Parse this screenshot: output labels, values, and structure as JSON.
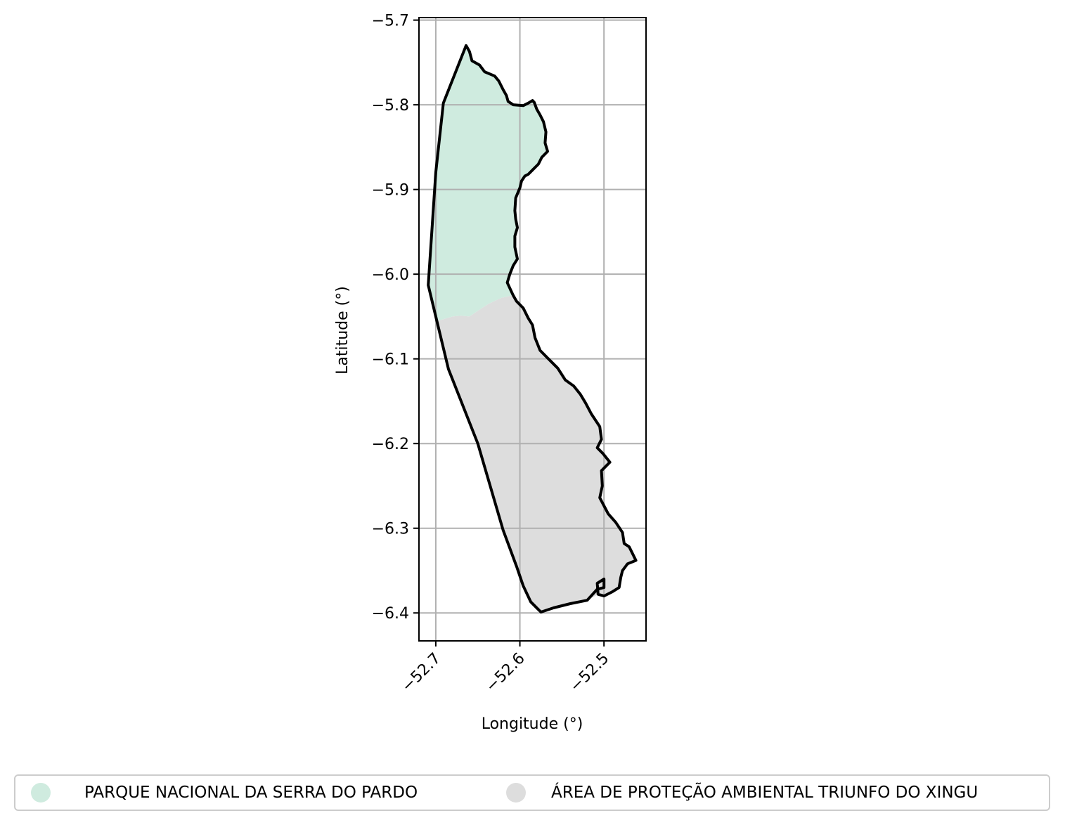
{
  "map": {
    "xlabel": "Longitude (°)",
    "ylabel": "Latitude (°)",
    "xlim": [
      -52.72,
      -52.45
    ],
    "ylim": [
      -6.433,
      -5.697
    ],
    "x_ticks": [
      -52.7,
      -52.6,
      -52.5
    ],
    "x_tick_labels": [
      "−52.7",
      "−52.6",
      "−52.5"
    ],
    "y_ticks": [
      -5.7,
      -5.8,
      -5.9,
      -6.0,
      -6.1,
      -6.2,
      -6.3,
      -6.4
    ],
    "y_tick_labels": [
      "−5.7",
      "−5.8",
      "−5.9",
      "−6.0",
      "−6.1",
      "−6.2",
      "−6.3",
      "−6.4"
    ],
    "grid": true,
    "boundary_color": "#000000",
    "regions": [
      {
        "name": "PARQUE NACIONAL DA SERRA DO PARDO",
        "color": "#cfebdf",
        "polygon": [
          [
            -52.664,
            -5.73
          ],
          [
            -52.66,
            -5.737
          ],
          [
            -52.657,
            -5.748
          ],
          [
            -52.648,
            -5.753
          ],
          [
            -52.642,
            -5.761
          ],
          [
            -52.63,
            -5.766
          ],
          [
            -52.625,
            -5.772
          ],
          [
            -52.62,
            -5.782
          ],
          [
            -52.616,
            -5.789
          ],
          [
            -52.614,
            -5.796
          ],
          [
            -52.608,
            -5.8
          ],
          [
            -52.596,
            -5.801
          ],
          [
            -52.59,
            -5.798
          ],
          [
            -52.585,
            -5.795
          ],
          [
            -52.583,
            -5.797
          ],
          [
            -52.58,
            -5.805
          ],
          [
            -52.576,
            -5.812
          ],
          [
            -52.572,
            -5.82
          ],
          [
            -52.569,
            -5.832
          ],
          [
            -52.57,
            -5.845
          ],
          [
            -52.567,
            -5.855
          ],
          [
            -52.574,
            -5.862
          ],
          [
            -52.578,
            -5.87
          ],
          [
            -52.585,
            -5.877
          ],
          [
            -52.59,
            -5.882
          ],
          [
            -52.594,
            -5.884
          ],
          [
            -52.598,
            -5.89
          ],
          [
            -52.6,
            -5.898
          ],
          [
            -52.605,
            -5.91
          ],
          [
            -52.606,
            -5.925
          ],
          [
            -52.605,
            -5.935
          ],
          [
            -52.603,
            -5.945
          ],
          [
            -52.606,
            -5.955
          ],
          [
            -52.606,
            -5.968
          ],
          [
            -52.603,
            -5.982
          ],
          [
            -52.608,
            -5.99
          ],
          [
            -52.612,
            -6.0
          ],
          [
            -52.615,
            -6.01
          ],
          [
            -52.608,
            -6.025
          ],
          [
            -52.622,
            -6.028
          ],
          [
            -52.637,
            -6.035
          ],
          [
            -52.645,
            -6.04
          ],
          [
            -52.66,
            -6.05
          ],
          [
            -52.67,
            -6.049
          ],
          [
            -52.68,
            -6.05
          ],
          [
            -52.697,
            -6.055
          ],
          [
            -52.7,
            -6.05
          ],
          [
            -52.709,
            -6.013
          ],
          [
            -52.7,
            -5.88
          ],
          [
            -52.691,
            -5.798
          ]
        ]
      },
      {
        "name": "ÁREA DE PROTEÇÃO AMBIENTAL TRIUNFO DO XINGU",
        "color": "#dddddd",
        "polygon": [
          [
            -52.697,
            -6.055
          ],
          [
            -52.68,
            -6.05
          ],
          [
            -52.67,
            -6.049
          ],
          [
            -52.66,
            -6.05
          ],
          [
            -52.645,
            -6.04
          ],
          [
            -52.637,
            -6.035
          ],
          [
            -52.622,
            -6.028
          ],
          [
            -52.608,
            -6.025
          ],
          [
            -52.604,
            -6.032
          ],
          [
            -52.596,
            -6.04
          ],
          [
            -52.59,
            -6.052
          ],
          [
            -52.585,
            -6.06
          ],
          [
            -52.582,
            -6.075
          ],
          [
            -52.576,
            -6.09
          ],
          [
            -52.566,
            -6.1
          ],
          [
            -52.555,
            -6.111
          ],
          [
            -52.546,
            -6.125
          ],
          [
            -52.536,
            -6.132
          ],
          [
            -52.528,
            -6.142
          ],
          [
            -52.522,
            -6.152
          ],
          [
            -52.515,
            -6.165
          ],
          [
            -52.505,
            -6.18
          ],
          [
            -52.503,
            -6.195
          ],
          [
            -52.508,
            -6.205
          ],
          [
            -52.501,
            -6.212
          ],
          [
            -52.493,
            -6.222
          ],
          [
            -52.503,
            -6.232
          ],
          [
            -52.502,
            -6.25
          ],
          [
            -52.505,
            -6.264
          ],
          [
            -52.495,
            -6.283
          ],
          [
            -52.486,
            -6.293
          ],
          [
            -52.478,
            -6.305
          ],
          [
            -52.476,
            -6.318
          ],
          [
            -52.47,
            -6.322
          ],
          [
            -52.462,
            -6.338
          ],
          [
            -52.472,
            -6.342
          ],
          [
            -52.478,
            -6.35
          ],
          [
            -52.48,
            -6.358
          ],
          [
            -52.482,
            -6.37
          ],
          [
            -52.49,
            -6.375
          ],
          [
            -52.5,
            -6.38
          ],
          [
            -52.507,
            -6.378
          ],
          [
            -52.52,
            -6.385
          ],
          [
            -52.54,
            -6.389
          ],
          [
            -52.56,
            -6.394
          ],
          [
            -52.575,
            -6.399
          ],
          [
            -52.587,
            -6.387
          ],
          [
            -52.596,
            -6.368
          ],
          [
            -52.604,
            -6.345
          ],
          [
            -52.62,
            -6.302
          ],
          [
            -52.65,
            -6.2
          ],
          [
            -52.685,
            -6.112
          ],
          [
            -52.7,
            -6.05
          ]
        ]
      }
    ],
    "outline": [
      [
        -52.664,
        -5.73
      ],
      [
        -52.66,
        -5.737
      ],
      [
        -52.657,
        -5.748
      ],
      [
        -52.648,
        -5.753
      ],
      [
        -52.642,
        -5.761
      ],
      [
        -52.63,
        -5.766
      ],
      [
        -52.625,
        -5.772
      ],
      [
        -52.62,
        -5.782
      ],
      [
        -52.616,
        -5.789
      ],
      [
        -52.614,
        -5.796
      ],
      [
        -52.608,
        -5.8
      ],
      [
        -52.596,
        -5.801
      ],
      [
        -52.59,
        -5.798
      ],
      [
        -52.585,
        -5.795
      ],
      [
        -52.583,
        -5.797
      ],
      [
        -52.58,
        -5.805
      ],
      [
        -52.576,
        -5.812
      ],
      [
        -52.572,
        -5.82
      ],
      [
        -52.569,
        -5.832
      ],
      [
        -52.57,
        -5.845
      ],
      [
        -52.567,
        -5.855
      ],
      [
        -52.574,
        -5.862
      ],
      [
        -52.578,
        -5.87
      ],
      [
        -52.585,
        -5.877
      ],
      [
        -52.59,
        -5.882
      ],
      [
        -52.594,
        -5.884
      ],
      [
        -52.598,
        -5.89
      ],
      [
        -52.6,
        -5.898
      ],
      [
        -52.605,
        -5.91
      ],
      [
        -52.606,
        -5.925
      ],
      [
        -52.605,
        -5.935
      ],
      [
        -52.603,
        -5.945
      ],
      [
        -52.606,
        -5.955
      ],
      [
        -52.606,
        -5.968
      ],
      [
        -52.603,
        -5.982
      ],
      [
        -52.608,
        -5.99
      ],
      [
        -52.612,
        -6.0
      ],
      [
        -52.615,
        -6.01
      ],
      [
        -52.608,
        -6.025
      ],
      [
        -52.604,
        -6.032
      ],
      [
        -52.596,
        -6.04
      ],
      [
        -52.59,
        -6.052
      ],
      [
        -52.585,
        -6.06
      ],
      [
        -52.582,
        -6.075
      ],
      [
        -52.576,
        -6.09
      ],
      [
        -52.566,
        -6.1
      ],
      [
        -52.555,
        -6.111
      ],
      [
        -52.546,
        -6.125
      ],
      [
        -52.536,
        -6.132
      ],
      [
        -52.528,
        -6.142
      ],
      [
        -52.522,
        -6.152
      ],
      [
        -52.515,
        -6.165
      ],
      [
        -52.505,
        -6.18
      ],
      [
        -52.503,
        -6.195
      ],
      [
        -52.508,
        -6.205
      ],
      [
        -52.501,
        -6.212
      ],
      [
        -52.493,
        -6.222
      ],
      [
        -52.503,
        -6.232
      ],
      [
        -52.502,
        -6.25
      ],
      [
        -52.505,
        -6.264
      ],
      [
        -52.495,
        -6.283
      ],
      [
        -52.486,
        -6.293
      ],
      [
        -52.478,
        -6.305
      ],
      [
        -52.476,
        -6.318
      ],
      [
        -52.47,
        -6.322
      ],
      [
        -52.462,
        -6.338
      ],
      [
        -52.472,
        -6.342
      ],
      [
        -52.478,
        -6.35
      ],
      [
        -52.48,
        -6.358
      ],
      [
        -52.482,
        -6.37
      ],
      [
        -52.49,
        -6.375
      ],
      [
        -52.5,
        -6.38
      ],
      [
        -52.507,
        -6.378
      ],
      [
        -52.508,
        -6.365
      ],
      [
        -52.5,
        -6.36
      ],
      [
        -52.5,
        -6.37
      ],
      [
        -52.508,
        -6.372
      ],
      [
        -52.52,
        -6.385
      ],
      [
        -52.54,
        -6.389
      ],
      [
        -52.56,
        -6.394
      ],
      [
        -52.575,
        -6.399
      ],
      [
        -52.587,
        -6.387
      ],
      [
        -52.596,
        -6.368
      ],
      [
        -52.604,
        -6.345
      ],
      [
        -52.62,
        -6.302
      ],
      [
        -52.65,
        -6.2
      ],
      [
        -52.685,
        -6.112
      ],
      [
        -52.7,
        -6.05
      ],
      [
        -52.709,
        -6.013
      ],
      [
        -52.7,
        -5.88
      ],
      [
        -52.691,
        -5.798
      ]
    ]
  },
  "legend": {
    "items": [
      {
        "label": "PARQUE NACIONAL DA SERRA DO PARDO",
        "color": "#cfebdf"
      },
      {
        "label": "ÁREA DE PROTEÇÃO AMBIENTAL TRIUNFO DO XINGU",
        "color": "#dddddd"
      }
    ]
  }
}
